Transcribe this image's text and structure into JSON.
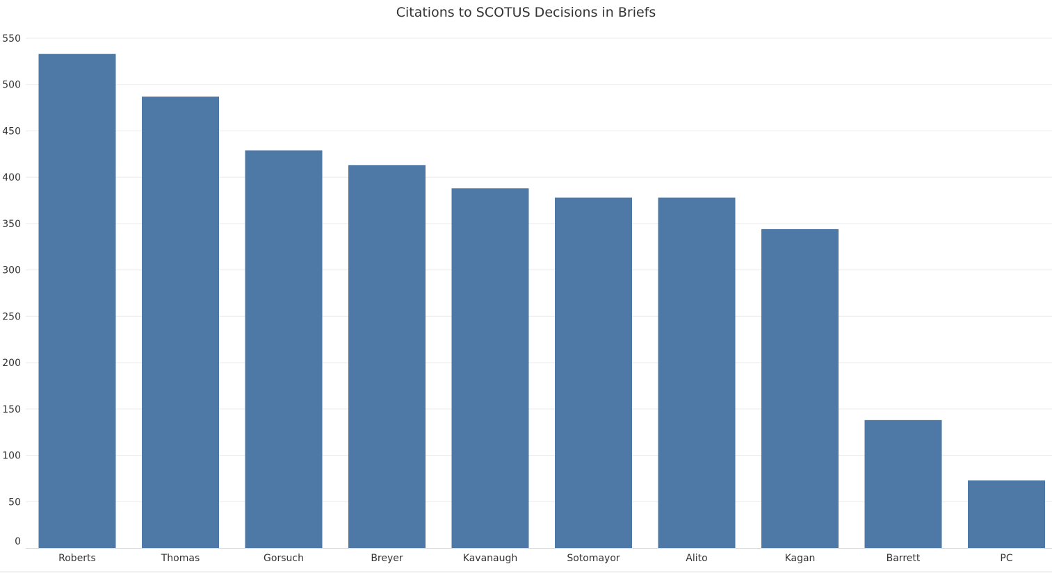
{
  "chart_data": {
    "type": "bar",
    "title": "Citations to SCOTUS Decisions in Briefs",
    "xlabel": "",
    "ylabel": "",
    "categories": [
      "Roberts",
      "Thomas",
      "Gorsuch",
      "Breyer",
      "Kavanaugh",
      "Sotomayor",
      "Alito",
      "Kagan",
      "Barrett",
      "PC"
    ],
    "values": [
      533,
      487,
      429,
      413,
      388,
      378,
      378,
      344,
      138,
      73
    ],
    "ylim": [
      0,
      550
    ],
    "yticks": [
      0,
      50,
      100,
      150,
      200,
      250,
      300,
      350,
      400,
      450,
      500,
      550
    ],
    "grid": true,
    "legend": "none",
    "bar_color": "#4e79a7",
    "grid_color": "#ebebeb"
  }
}
